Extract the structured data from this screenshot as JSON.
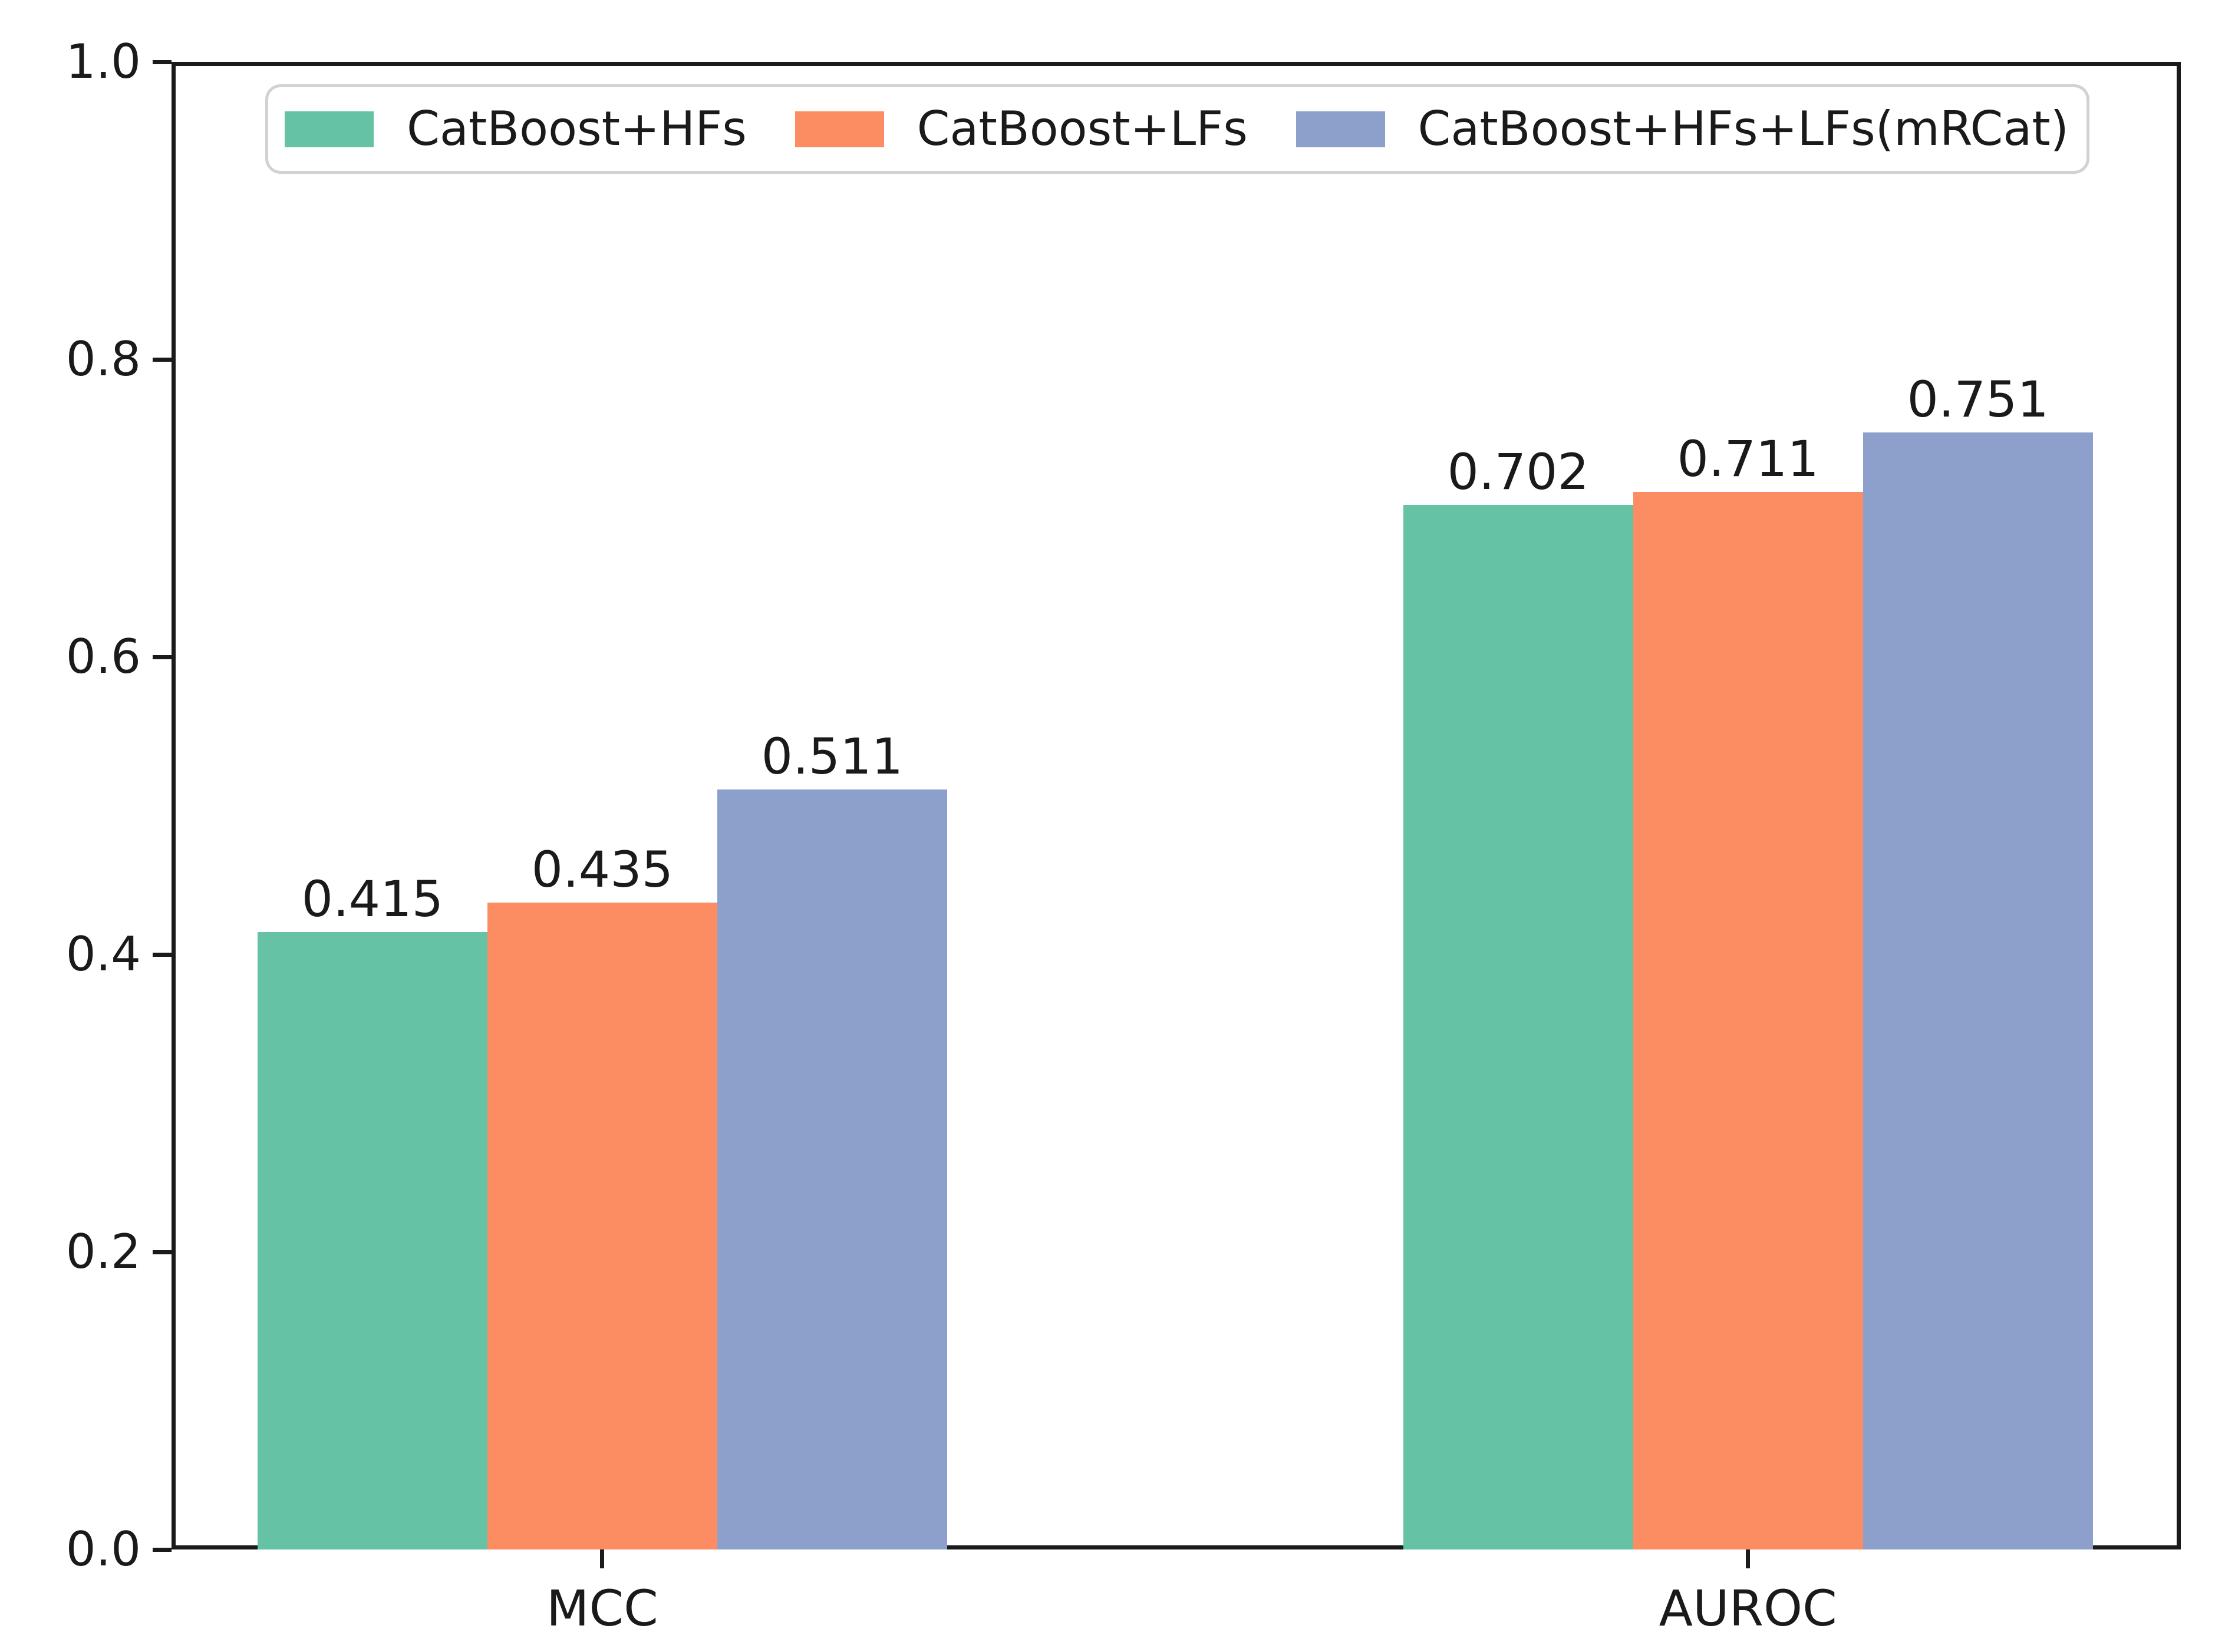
{
  "chart_data": {
    "type": "bar",
    "categories": [
      "MCC",
      "AUROC"
    ],
    "series": [
      {
        "name": "CatBoost+HFs",
        "color": "#66c2a5",
        "values": [
          0.415,
          0.702
        ],
        "value_labels": [
          "0.415",
          "0.702"
        ]
      },
      {
        "name": "CatBoost+LFs",
        "color": "#fc8d62",
        "values": [
          0.435,
          0.711
        ],
        "value_labels": [
          "0.435",
          "0.711"
        ]
      },
      {
        "name": "CatBoost+HFs+LFs(mRCat)",
        "color": "#8da0cb",
        "values": [
          0.511,
          0.751
        ],
        "value_labels": [
          "0.511",
          "0.751"
        ]
      }
    ],
    "title": "",
    "xlabel": "",
    "ylabel": "",
    "ylim": [
      0.0,
      1.0
    ],
    "yticks": [
      "0.0",
      "0.2",
      "0.4",
      "0.6",
      "0.8",
      "1.0"
    ],
    "grid": false,
    "legend": {
      "position": "upper-center-inside"
    },
    "colors": {
      "axis": "#1a1a1a",
      "text": "#1a1a1a",
      "legend_border": "#d2d2d2",
      "background": "#ffffff"
    }
  }
}
